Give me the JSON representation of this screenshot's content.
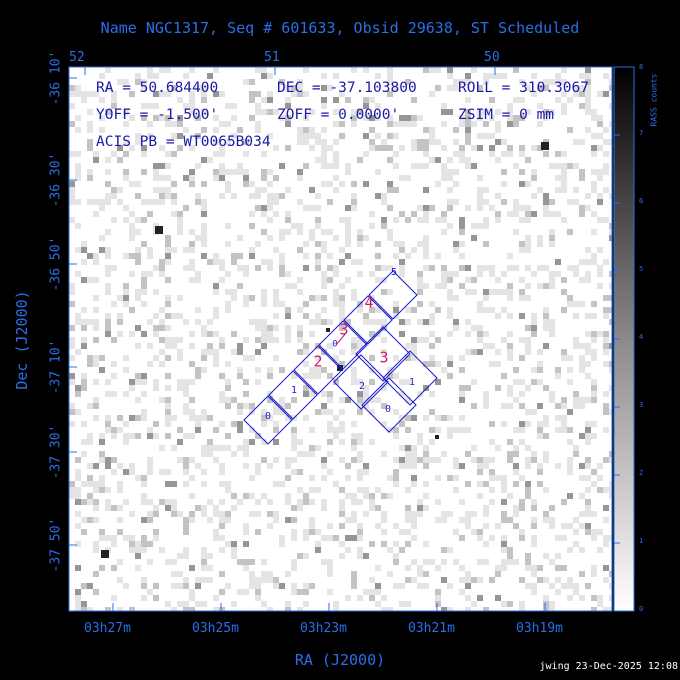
{
  "title": "Name NGC1317, Seq # 601633, Obsid 29638, ST Scheduled",
  "footer": "jwing 23-Dec-2025 12:08",
  "info": {
    "ra": "RA = 50.684400",
    "dec": "DEC = -37.103800",
    "roll": "ROLL = 310.3067",
    "yoff": "YOFF =  -1.500'",
    "zoff": "ZOFF =  0.0000'",
    "zsim": "ZSIM = 0 mm",
    "acis": "ACIS PB = WT0065B034"
  },
  "colorbar": {
    "label": "RASS counts",
    "ticks": [
      "0",
      "1",
      "2",
      "3",
      "4",
      "5",
      "6",
      "7",
      "8"
    ]
  },
  "chart_data": {
    "type": "heatmap",
    "title": "Name NGC1317, Seq # 601633, Obsid 29638, ST Scheduled",
    "xlabel": "RA (J2000)",
    "ylabel": "Dec (J2000)",
    "x_ticks_bottom": [
      "03h27m",
      "03h25m",
      "03h23m",
      "03h21m",
      "03h19m"
    ],
    "x_ticks_top": [
      "52",
      "51",
      "50"
    ],
    "y_ticks": [
      "-36 10'",
      "-36 30'",
      "-36 50'",
      "-37 10'",
      "-37 30'",
      "-37 50'"
    ],
    "colorbar_range": [
      0,
      8
    ],
    "chips": {
      "imaging": [
        "0",
        "1",
        "2",
        "3",
        "4",
        "5"
      ],
      "spectroscopy": [
        "0",
        "1",
        "2",
        "3"
      ],
      "highlighted": [
        "2",
        "3",
        "4",
        "3"
      ]
    }
  }
}
